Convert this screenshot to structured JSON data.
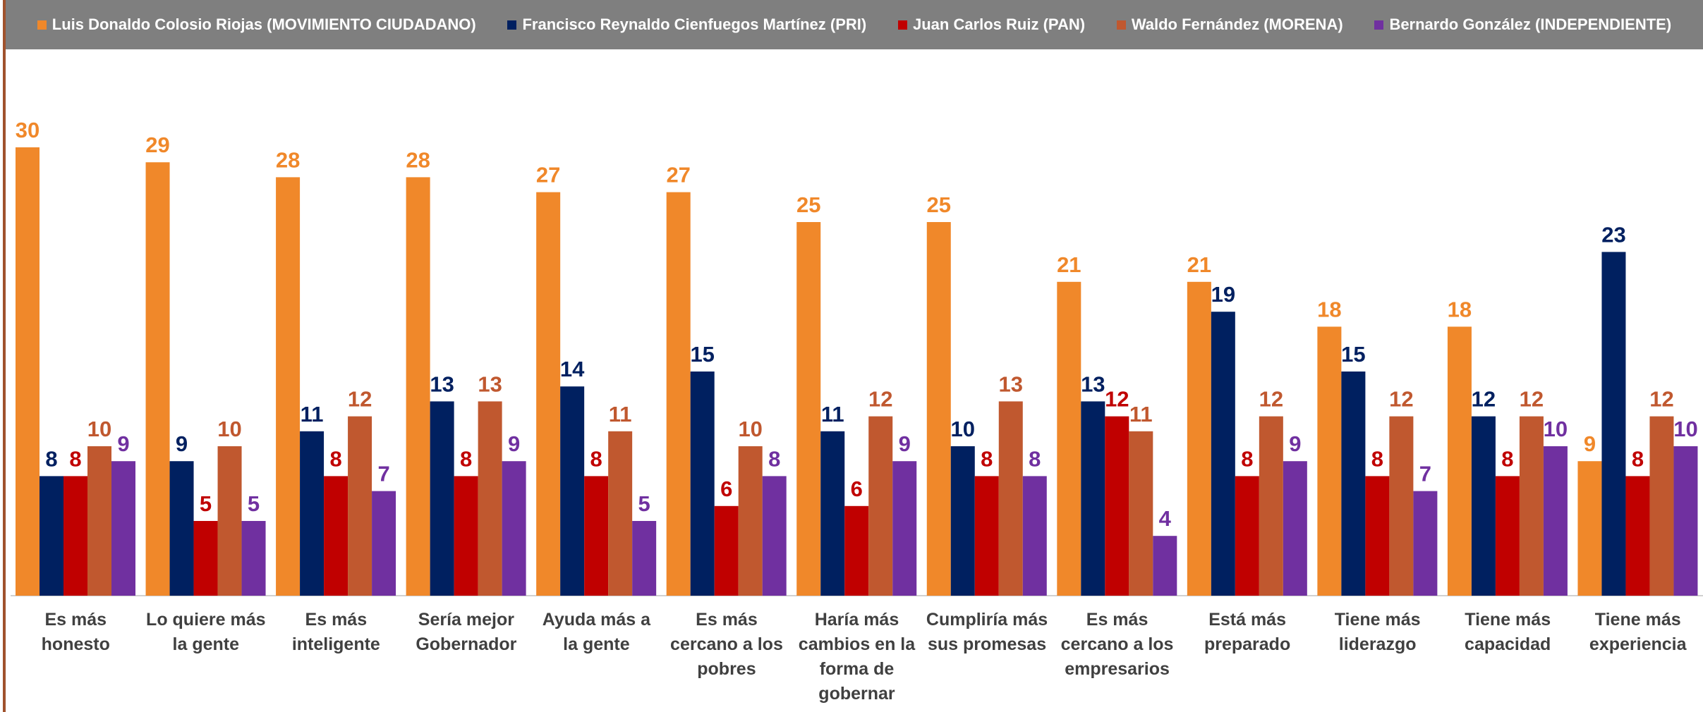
{
  "chart_data": {
    "type": "bar",
    "categories": [
      "Es más honesto",
      "Lo quiere más la gente",
      "Es más inteligente",
      "Sería mejor Gobernador",
      "Ayuda más a la gente",
      "Es más cercano a los pobres",
      "Haría más cambios en la forma de gobernar",
      "Cumpliría más sus promesas",
      "Es más cercano a los empresarios",
      "Está más preparado",
      "Tiene más liderazgo",
      "Tiene más capacidad",
      "Tiene más experiencia"
    ],
    "series": [
      {
        "name": "Luis Donaldo Colosio Riojas (MOVIMIENTO CIUDADANO)",
        "color": "#f0882a",
        "values": [
          30,
          29,
          28,
          28,
          27,
          27,
          25,
          25,
          21,
          21,
          18,
          18,
          9
        ]
      },
      {
        "name": "Francisco Reynaldo Cienfuegos Martínez (PRI)",
        "color": "#002060",
        "values": [
          8,
          9,
          11,
          13,
          14,
          15,
          11,
          10,
          13,
          19,
          15,
          12,
          23
        ]
      },
      {
        "name": "Juan Carlos Ruiz (PAN)",
        "color": "#c00000",
        "values": [
          8,
          5,
          8,
          8,
          8,
          6,
          6,
          8,
          12,
          8,
          8,
          8,
          8
        ]
      },
      {
        "name": "Waldo Fernández (MORENA)",
        "color": "#c0582f",
        "values": [
          10,
          10,
          12,
          13,
          11,
          10,
          12,
          13,
          11,
          12,
          12,
          12,
          12
        ]
      },
      {
        "name": "Bernardo González (INDEPENDIENTE)",
        "color": "#7030a0",
        "values": [
          9,
          5,
          7,
          9,
          5,
          8,
          9,
          8,
          4,
          9,
          7,
          10,
          10
        ]
      }
    ],
    "legend": "top",
    "data_labels": true
  }
}
